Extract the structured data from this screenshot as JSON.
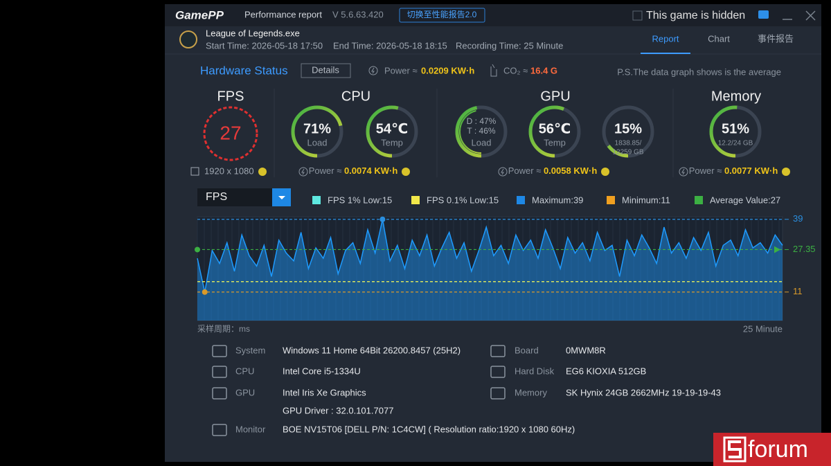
{
  "header": {
    "logo": "GamePP",
    "title": "Performance report",
    "version": "V 5.6.63.420",
    "switch_button": "切换至性能报告2.0",
    "hidden_checkbox": "This game is hidden"
  },
  "tabs": [
    "Report",
    "Chart",
    "事件报告"
  ],
  "active_tab": 0,
  "game": {
    "name": "League of Legends.exe",
    "start_time": "Start Time: 2026-05-18 17:50",
    "end_time": "End Time: 2026-05-18 18:15",
    "recording_time": "Recording Time: 25 Minute"
  },
  "hardware_status": {
    "title": "Hardware Status",
    "details_button": "Details",
    "power_label": "Power ≈",
    "power_value": "0.0209 KW·h",
    "co2_label": "CO₂ ≈",
    "co2_value": "16.4 G",
    "note": "P.S.The data graph shows is the average"
  },
  "sections": [
    {
      "title": "FPS",
      "fps": 27,
      "resolution": "1920 x 1080"
    },
    {
      "title": "CPU",
      "gauges": [
        {
          "value": 71,
          "value_label": "71%",
          "label": "Load"
        },
        {
          "value": 54,
          "value_label": "54℃",
          "label": "Temp"
        }
      ],
      "power_label": "Power ≈",
      "power_value": "0.0074 KW·h"
    },
    {
      "title": "GPU",
      "gauges": [
        {
          "lines": [
            {
              "value": 47,
              "label": "D : 47%"
            },
            {
              "value": 46,
              "label": "T : 46%"
            }
          ],
          "label": "Load"
        },
        {
          "value": 56,
          "value_label": "56℃",
          "label": "Temp"
        },
        {
          "value": 15,
          "value_label": "15%",
          "sub": [
            "1838.85/",
            "12259 GB"
          ]
        }
      ],
      "power_label": "Power ≈",
      "power_value": "0.0058 KW·h"
    },
    {
      "title": "Memory",
      "gauges": [
        {
          "value": 51,
          "value_label": "51%",
          "sub": [
            "12.2/24 GB"
          ]
        }
      ],
      "power_label": "Power ≈",
      "power_value": "0.0077 KW·h"
    }
  ],
  "chart_data": {
    "type": "line",
    "selector": "FPS",
    "color": "#1e9bff",
    "ylim": [
      0,
      40
    ],
    "legend": [
      {
        "label": "FPS 1% Low:15",
        "value": 15,
        "color": "#5ee8e0"
      },
      {
        "label": "FPS 0.1% Low:15",
        "value": 15,
        "color": "#f2e84a"
      },
      {
        "label": "Maximum:39",
        "value": 39,
        "color": "#1e88e5"
      },
      {
        "label": "Minimum:11",
        "value": 11,
        "color": "#f0a020"
      },
      {
        "label": "Average Value:27",
        "value": 27,
        "color": "#3cb043"
      }
    ],
    "reference_lines": [
      {
        "value": 39,
        "color": "#2a8fe0"
      },
      {
        "value": 27.35,
        "color": "#3cb043"
      },
      {
        "value": 11,
        "color": "#d99a2a"
      }
    ],
    "values": [
      24,
      11,
      27,
      22,
      30,
      19,
      33,
      25,
      21,
      29,
      17,
      31,
      26,
      23,
      34,
      20,
      28,
      24,
      32,
      18,
      27,
      30,
      22,
      35,
      26,
      39,
      23,
      29,
      20,
      31,
      25,
      33,
      21,
      28,
      34,
      24,
      30,
      19,
      27,
      36,
      25,
      29,
      22,
      33,
      27,
      31,
      24,
      35,
      28,
      20,
      32,
      26,
      30,
      23,
      34,
      27,
      29,
      17,
      31,
      25,
      33,
      28,
      22,
      36,
      26,
      30,
      24,
      32,
      27,
      34,
      21,
      29,
      31,
      25,
      35,
      28,
      30,
      26,
      33,
      29
    ],
    "x_label": "采样周期：ms",
    "x_end_label": "25 Minute"
  },
  "system_info": {
    "left": [
      {
        "label": "System",
        "value": "Windows 11 Home 64Bit 26200.8457 (25H2)"
      },
      {
        "label": "CPU",
        "value": "Intel Core i5-1334U"
      },
      {
        "label": "GPU",
        "value": "Intel Iris Xe Graphics",
        "extra": "GPU Driver : 32.0.101.7077"
      },
      {
        "label": "Monitor",
        "value": "BOE NV15T06 [DELL P/N: 1C4CW] ( Resolution ratio:1920 x 1080 60Hz)"
      }
    ],
    "right": [
      {
        "label": "Board",
        "value": "0MWM8R"
      },
      {
        "label": "Hard Disk",
        "value": "EG6 KIOXIA 512GB"
      },
      {
        "label": "Memory",
        "value": "SK Hynix 24GB 2662MHz 19-19-19-43"
      }
    ]
  },
  "watermark": "forum"
}
